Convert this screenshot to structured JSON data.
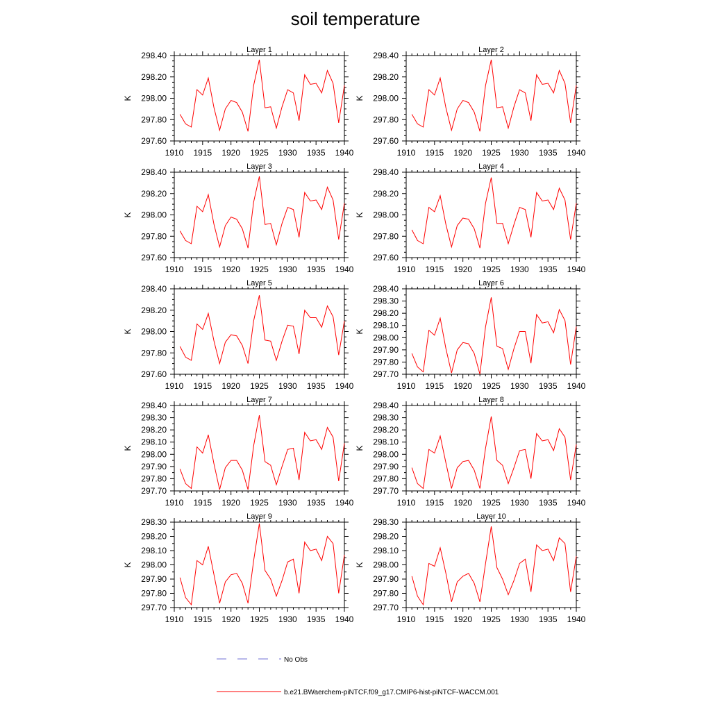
{
  "figure_title": "soil temperature",
  "legend": {
    "obs_label": "No Obs",
    "obs_color": "#6f6fd6",
    "model_label": "b.e21.BWaerchem-piNTCF.f09_g17.CMIP6-hist-piNTCF-WACCM.001",
    "model_color": "#ff0000"
  },
  "chart_data": [
    {
      "type": "line",
      "title": "Layer 1",
      "xlabel": "",
      "ylabel": "K",
      "xlim": [
        1910,
        1940
      ],
      "ylim": [
        297.6,
        298.4
      ],
      "yticks": [
        "297.60",
        "297.80",
        "298.00",
        "298.20",
        "298.40"
      ],
      "xticks": [
        "1910",
        "1915",
        "1920",
        "1925",
        "1930",
        "1935",
        "1940"
      ],
      "x": [
        1911,
        1912,
        1913,
        1914,
        1915,
        1916,
        1917,
        1918,
        1919,
        1920,
        1921,
        1922,
        1923,
        1924,
        1925,
        1926,
        1927,
        1928,
        1929,
        1930,
        1931,
        1932,
        1933,
        1934,
        1935,
        1936,
        1937,
        1938,
        1939,
        1940
      ],
      "series": [
        {
          "values": [
            297.85,
            297.76,
            297.73,
            298.08,
            298.03,
            298.19,
            297.91,
            297.7,
            297.9,
            297.98,
            297.96,
            297.87,
            297.69,
            298.12,
            298.36,
            297.91,
            297.92,
            297.72,
            297.92,
            298.08,
            298.05,
            297.79,
            298.22,
            298.13,
            298.14,
            298.05,
            298.26,
            298.14,
            297.77,
            298.12
          ]
        }
      ]
    },
    {
      "type": "line",
      "title": "Layer 2",
      "xlabel": "",
      "ylabel": "K",
      "xlim": [
        1910,
        1940
      ],
      "ylim": [
        297.6,
        298.4
      ],
      "yticks": [
        "297.60",
        "297.80",
        "298.00",
        "298.20",
        "298.40"
      ],
      "xticks": [
        "1910",
        "1915",
        "1920",
        "1925",
        "1930",
        "1935",
        "1940"
      ],
      "x": [
        1911,
        1912,
        1913,
        1914,
        1915,
        1916,
        1917,
        1918,
        1919,
        1920,
        1921,
        1922,
        1923,
        1924,
        1925,
        1926,
        1927,
        1928,
        1929,
        1930,
        1931,
        1932,
        1933,
        1934,
        1935,
        1936,
        1937,
        1938,
        1939,
        1940
      ],
      "series": [
        {
          "values": [
            297.85,
            297.76,
            297.73,
            298.08,
            298.03,
            298.19,
            297.91,
            297.7,
            297.9,
            297.98,
            297.96,
            297.87,
            297.69,
            298.12,
            298.36,
            297.91,
            297.92,
            297.72,
            297.92,
            298.08,
            298.05,
            297.79,
            298.22,
            298.13,
            298.14,
            298.05,
            298.26,
            298.14,
            297.77,
            298.12
          ]
        }
      ]
    },
    {
      "type": "line",
      "title": "Layer 3",
      "xlabel": "",
      "ylabel": "K",
      "xlim": [
        1910,
        1940
      ],
      "ylim": [
        297.6,
        298.4
      ],
      "yticks": [
        "297.60",
        "297.80",
        "298.00",
        "298.20",
        "298.40"
      ],
      "xticks": [
        "1910",
        "1915",
        "1920",
        "1925",
        "1930",
        "1935",
        "1940"
      ],
      "x": [
        1911,
        1912,
        1913,
        1914,
        1915,
        1916,
        1917,
        1918,
        1919,
        1920,
        1921,
        1922,
        1923,
        1924,
        1925,
        1926,
        1927,
        1928,
        1929,
        1930,
        1931,
        1932,
        1933,
        1934,
        1935,
        1936,
        1937,
        1938,
        1939,
        1940
      ],
      "series": [
        {
          "values": [
            297.85,
            297.76,
            297.73,
            298.08,
            298.03,
            298.19,
            297.91,
            297.7,
            297.9,
            297.98,
            297.96,
            297.87,
            297.69,
            298.12,
            298.36,
            297.91,
            297.92,
            297.72,
            297.92,
            298.07,
            298.05,
            297.79,
            298.21,
            298.13,
            298.14,
            298.05,
            298.26,
            298.14,
            297.77,
            298.11
          ]
        }
      ]
    },
    {
      "type": "line",
      "title": "Layer 4",
      "xlabel": "",
      "ylabel": "K",
      "xlim": [
        1910,
        1940
      ],
      "ylim": [
        297.6,
        298.4
      ],
      "yticks": [
        "297.60",
        "297.80",
        "298.00",
        "298.20",
        "298.40"
      ],
      "xticks": [
        "1910",
        "1915",
        "1920",
        "1925",
        "1930",
        "1935",
        "1940"
      ],
      "x": [
        1911,
        1912,
        1913,
        1914,
        1915,
        1916,
        1917,
        1918,
        1919,
        1920,
        1921,
        1922,
        1923,
        1924,
        1925,
        1926,
        1927,
        1928,
        1929,
        1930,
        1931,
        1932,
        1933,
        1934,
        1935,
        1936,
        1937,
        1938,
        1939,
        1940
      ],
      "series": [
        {
          "values": [
            297.86,
            297.76,
            297.73,
            298.07,
            298.03,
            298.18,
            297.91,
            297.7,
            297.9,
            297.97,
            297.96,
            297.87,
            297.69,
            298.11,
            298.35,
            297.92,
            297.92,
            297.73,
            297.91,
            298.07,
            298.05,
            297.79,
            298.21,
            298.13,
            298.14,
            298.05,
            298.25,
            298.14,
            297.77,
            298.11
          ]
        }
      ]
    },
    {
      "type": "line",
      "title": "Layer 5",
      "xlabel": "",
      "ylabel": "K",
      "xlim": [
        1910,
        1940
      ],
      "ylim": [
        297.6,
        298.4
      ],
      "yticks": [
        "297.60",
        "297.80",
        "298.00",
        "298.20",
        "298.40"
      ],
      "xticks": [
        "1910",
        "1915",
        "1920",
        "1925",
        "1930",
        "1935",
        "1940"
      ],
      "x": [
        1911,
        1912,
        1913,
        1914,
        1915,
        1916,
        1917,
        1918,
        1919,
        1920,
        1921,
        1922,
        1923,
        1924,
        1925,
        1926,
        1927,
        1928,
        1929,
        1930,
        1931,
        1932,
        1933,
        1934,
        1935,
        1936,
        1937,
        1938,
        1939,
        1940
      ],
      "series": [
        {
          "values": [
            297.86,
            297.76,
            297.73,
            298.07,
            298.02,
            298.17,
            297.91,
            297.7,
            297.9,
            297.97,
            297.96,
            297.87,
            297.7,
            298.1,
            298.34,
            297.92,
            297.91,
            297.73,
            297.91,
            298.06,
            298.05,
            297.79,
            298.2,
            298.13,
            298.13,
            298.04,
            298.24,
            298.14,
            297.78,
            298.1
          ]
        }
      ]
    },
    {
      "type": "line",
      "title": "Layer 6",
      "xlabel": "",
      "ylabel": "K",
      "xlim": [
        1910,
        1940
      ],
      "ylim": [
        297.7,
        298.4
      ],
      "yticks": [
        "297.70",
        "297.80",
        "297.90",
        "298.00",
        "298.10",
        "298.20",
        "298.30",
        "298.40"
      ],
      "xticks": [
        "1910",
        "1915",
        "1920",
        "1925",
        "1930",
        "1935",
        "1940"
      ],
      "x": [
        1911,
        1912,
        1913,
        1914,
        1915,
        1916,
        1917,
        1918,
        1919,
        1920,
        1921,
        1922,
        1923,
        1924,
        1925,
        1926,
        1927,
        1928,
        1929,
        1930,
        1931,
        1932,
        1933,
        1934,
        1935,
        1936,
        1937,
        1938,
        1939,
        1940
      ],
      "series": [
        {
          "values": [
            297.87,
            297.76,
            297.72,
            298.06,
            298.02,
            298.16,
            297.91,
            297.71,
            297.9,
            297.96,
            297.95,
            297.87,
            297.7,
            298.09,
            298.33,
            297.93,
            297.91,
            297.74,
            297.91,
            298.05,
            298.05,
            297.79,
            298.19,
            298.12,
            298.13,
            298.04,
            298.23,
            298.14,
            297.78,
            298.09
          ]
        }
      ]
    },
    {
      "type": "line",
      "title": "Layer 7",
      "xlabel": "",
      "ylabel": "K",
      "xlim": [
        1910,
        1940
      ],
      "ylim": [
        297.7,
        298.4
      ],
      "yticks": [
        "297.70",
        "297.80",
        "297.90",
        "298.00",
        "298.10",
        "298.20",
        "298.30",
        "298.40"
      ],
      "xticks": [
        "1910",
        "1915",
        "1920",
        "1925",
        "1930",
        "1935",
        "1940"
      ],
      "x": [
        1911,
        1912,
        1913,
        1914,
        1915,
        1916,
        1917,
        1918,
        1919,
        1920,
        1921,
        1922,
        1923,
        1924,
        1925,
        1926,
        1927,
        1928,
        1929,
        1930,
        1931,
        1932,
        1933,
        1934,
        1935,
        1936,
        1937,
        1938,
        1939,
        1940
      ],
      "series": [
        {
          "values": [
            297.88,
            297.76,
            297.72,
            298.06,
            298.01,
            298.16,
            297.92,
            297.71,
            297.89,
            297.95,
            297.95,
            297.87,
            297.71,
            298.07,
            298.32,
            297.94,
            297.91,
            297.75,
            297.9,
            298.04,
            298.05,
            297.79,
            298.18,
            298.11,
            298.12,
            298.04,
            298.22,
            298.14,
            297.78,
            298.09
          ]
        }
      ]
    },
    {
      "type": "line",
      "title": "Layer 8",
      "xlabel": "",
      "ylabel": "K",
      "xlim": [
        1910,
        1940
      ],
      "ylim": [
        297.7,
        298.4
      ],
      "yticks": [
        "297.70",
        "297.80",
        "297.90",
        "298.00",
        "298.10",
        "298.20",
        "298.30",
        "298.40"
      ],
      "xticks": [
        "1910",
        "1915",
        "1920",
        "1925",
        "1930",
        "1935",
        "1940"
      ],
      "x": [
        1911,
        1912,
        1913,
        1914,
        1915,
        1916,
        1917,
        1918,
        1919,
        1920,
        1921,
        1922,
        1923,
        1924,
        1925,
        1926,
        1927,
        1928,
        1929,
        1930,
        1931,
        1932,
        1933,
        1934,
        1935,
        1936,
        1937,
        1938,
        1939,
        1940
      ],
      "series": [
        {
          "values": [
            297.89,
            297.76,
            297.72,
            298.04,
            298.01,
            298.15,
            297.93,
            297.72,
            297.89,
            297.94,
            297.95,
            297.87,
            297.72,
            298.05,
            298.31,
            297.95,
            297.91,
            297.76,
            297.89,
            298.03,
            298.04,
            297.8,
            298.17,
            298.11,
            298.12,
            298.03,
            298.21,
            298.14,
            297.79,
            298.08
          ]
        }
      ]
    },
    {
      "type": "line",
      "title": "Layer 9",
      "xlabel": "",
      "ylabel": "K",
      "xlim": [
        1910,
        1940
      ],
      "ylim": [
        297.7,
        298.3
      ],
      "yticks": [
        "297.70",
        "297.80",
        "297.90",
        "298.00",
        "298.10",
        "298.20",
        "298.30"
      ],
      "xticks": [
        "1910",
        "1915",
        "1920",
        "1925",
        "1930",
        "1935",
        "1940"
      ],
      "x": [
        1911,
        1912,
        1913,
        1914,
        1915,
        1916,
        1917,
        1918,
        1919,
        1920,
        1921,
        1922,
        1923,
        1924,
        1925,
        1926,
        1927,
        1928,
        1929,
        1930,
        1931,
        1932,
        1933,
        1934,
        1935,
        1936,
        1937,
        1938,
        1939,
        1940
      ],
      "series": [
        {
          "values": [
            297.91,
            297.77,
            297.72,
            298.03,
            298.0,
            298.13,
            297.93,
            297.73,
            297.88,
            297.93,
            297.94,
            297.87,
            297.73,
            298.03,
            298.29,
            297.96,
            297.9,
            297.78,
            297.89,
            298.02,
            298.04,
            297.8,
            298.16,
            298.1,
            298.11,
            298.03,
            298.2,
            298.15,
            297.8,
            298.07
          ]
        }
      ]
    },
    {
      "type": "line",
      "title": "Layer 10",
      "xlabel": "",
      "ylabel": "K",
      "xlim": [
        1910,
        1940
      ],
      "ylim": [
        297.7,
        298.3
      ],
      "yticks": [
        "297.70",
        "297.80",
        "297.90",
        "298.00",
        "298.10",
        "298.20",
        "298.30"
      ],
      "xticks": [
        "1910",
        "1915",
        "1920",
        "1925",
        "1930",
        "1935",
        "1940"
      ],
      "x": [
        1911,
        1912,
        1913,
        1914,
        1915,
        1916,
        1917,
        1918,
        1919,
        1920,
        1921,
        1922,
        1923,
        1924,
        1925,
        1926,
        1927,
        1928,
        1929,
        1930,
        1931,
        1932,
        1933,
        1934,
        1935,
        1936,
        1937,
        1938,
        1939,
        1940
      ],
      "series": [
        {
          "values": [
            297.92,
            297.78,
            297.72,
            298.01,
            297.99,
            298.12,
            297.94,
            297.74,
            297.88,
            297.92,
            297.94,
            297.87,
            297.74,
            298.01,
            298.27,
            297.98,
            297.9,
            297.79,
            297.89,
            298.01,
            298.04,
            297.81,
            298.14,
            298.1,
            298.11,
            298.03,
            298.19,
            298.15,
            297.81,
            298.06
          ]
        }
      ]
    }
  ]
}
